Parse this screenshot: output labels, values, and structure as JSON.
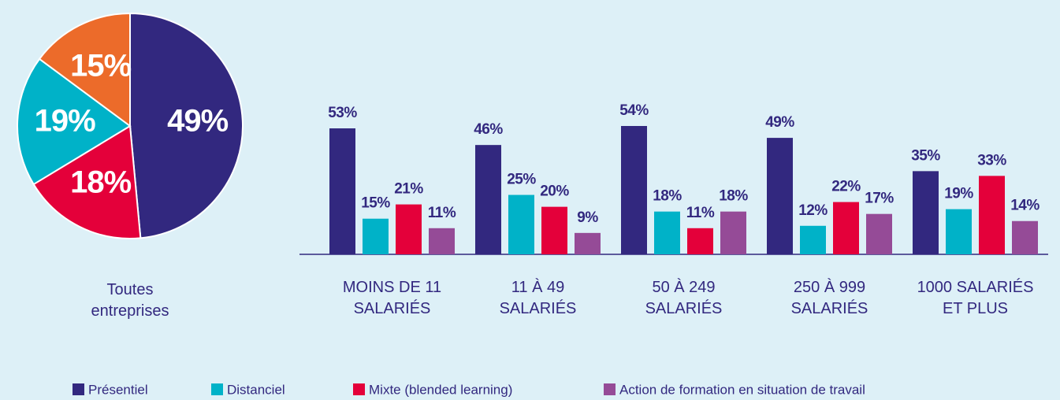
{
  "chart_data": [
    {
      "type": "pie",
      "caption": "Toutes\nentreprises",
      "values": [
        49,
        18,
        19,
        15
      ],
      "value_labels": [
        "49%",
        "18%",
        "19%",
        "15%"
      ],
      "colors": [
        "#32287f",
        "#e4003a",
        "#00b2c8",
        "#ec6b2a"
      ]
    },
    {
      "type": "bar",
      "categories": [
        "MOINS DE 11\nSALARIÉS",
        "11 À 49\nSALARIÉS",
        "50 À 249\nSALARIÉS",
        "250 À 999\nSALARIÉS",
        "1000 SALARIÉS\nET PLUS"
      ],
      "series": [
        {
          "name": "Présentiel",
          "color": "#32287f",
          "values": [
            53,
            46,
            54,
            49,
            35
          ],
          "value_labels": [
            "53%",
            "46%",
            "54%",
            "49%",
            "35%"
          ]
        },
        {
          "name": "Distanciel",
          "color": "#00b2c8",
          "values": [
            15,
            25,
            18,
            12,
            19
          ],
          "value_labels": [
            "15%",
            "25%",
            "18%",
            "12%",
            "19%"
          ]
        },
        {
          "name": "Mixte (blended learning)",
          "color": "#e4003a",
          "values": [
            21,
            20,
            11,
            22,
            33
          ],
          "value_labels": [
            "21%",
            "20%",
            "11%",
            "22%",
            "33%"
          ]
        },
        {
          "name": "Action de formation en situation de travail",
          "color": "#954b97",
          "values": [
            11,
            9,
            18,
            17,
            14
          ],
          "value_labels": [
            "11%",
            "9%",
            "18%",
            "17%",
            "14%"
          ]
        }
      ]
    }
  ]
}
